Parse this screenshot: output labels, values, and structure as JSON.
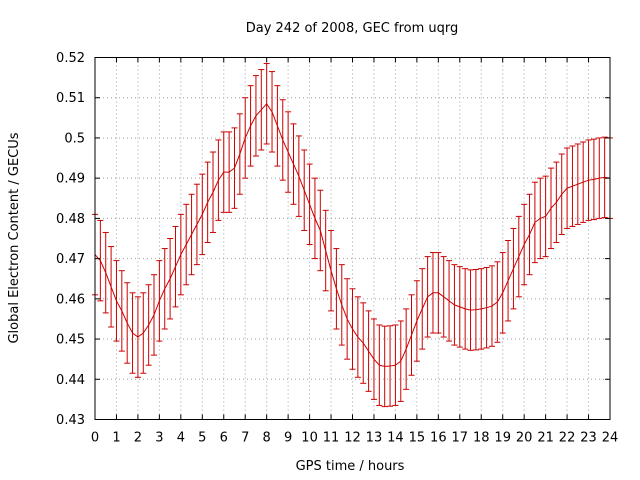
{
  "chart_data": {
    "type": "line",
    "title": "Day 242 of 2008, GEC from uqrg",
    "xlabel": "GPS time / hours",
    "ylabel": "Global Electron Content / GECUs",
    "xlim": [
      0,
      24
    ],
    "ylim": [
      0.43,
      0.52
    ],
    "xticks": [
      "0",
      "1",
      "2",
      "3",
      "4",
      "5",
      "6",
      "7",
      "8",
      "9",
      "10",
      "11",
      "12",
      "13",
      "14",
      "15",
      "16",
      "17",
      "18",
      "19",
      "20",
      "21",
      "22",
      "23",
      "24"
    ],
    "yticks": [
      "0.43",
      "0.44",
      "0.45",
      "0.46",
      "0.47",
      "0.48",
      "0.49",
      "0.5",
      "0.51",
      "0.52"
    ],
    "grid": true,
    "color": "#cc0000",
    "series": [
      {
        "name": "GEC",
        "x": [
          0,
          0.25,
          0.5,
          0.75,
          1,
          1.25,
          1.5,
          1.75,
          2,
          2.25,
          2.5,
          2.75,
          3,
          3.25,
          3.5,
          3.75,
          4,
          4.25,
          4.5,
          4.75,
          5,
          5.25,
          5.5,
          5.75,
          6,
          6.25,
          6.5,
          6.75,
          7,
          7.25,
          7.5,
          7.75,
          8,
          8.25,
          8.5,
          8.75,
          9,
          9.25,
          9.5,
          9.75,
          10,
          10.25,
          10.5,
          10.75,
          11,
          11.25,
          11.5,
          11.75,
          12,
          12.25,
          12.5,
          12.75,
          13,
          13.25,
          13.5,
          13.75,
          14,
          14.25,
          14.5,
          14.75,
          15,
          15.25,
          15.5,
          15.75,
          16,
          16.25,
          16.5,
          16.75,
          17,
          17.25,
          17.5,
          17.75,
          18,
          18.25,
          18.5,
          18.75,
          19,
          19.25,
          19.5,
          19.75,
          20,
          20.25,
          20.5,
          20.75,
          21,
          21.25,
          21.5,
          21.75,
          22,
          22.25,
          22.5,
          22.75,
          23,
          23.25,
          23.5,
          23.75,
          24
        ],
        "y": [
          0.471,
          0.4695,
          0.4665,
          0.463,
          0.4595,
          0.457,
          0.454,
          0.4515,
          0.4505,
          0.4515,
          0.4535,
          0.456,
          0.4595,
          0.4625,
          0.465,
          0.468,
          0.471,
          0.4735,
          0.476,
          0.4785,
          0.481,
          0.484,
          0.4865,
          0.4895,
          0.4915,
          0.4915,
          0.4925,
          0.496,
          0.5,
          0.503,
          0.5055,
          0.507,
          0.5085,
          0.5065,
          0.503,
          0.4995,
          0.4965,
          0.4935,
          0.4905,
          0.487,
          0.4835,
          0.48,
          0.477,
          0.472,
          0.467,
          0.4625,
          0.4585,
          0.455,
          0.4525,
          0.4505,
          0.449,
          0.447,
          0.445,
          0.4435,
          0.4432,
          0.4433,
          0.4435,
          0.4445,
          0.4475,
          0.451,
          0.4545,
          0.4575,
          0.4605,
          0.4615,
          0.4615,
          0.4605,
          0.4595,
          0.4585,
          0.458,
          0.4575,
          0.4572,
          0.4573,
          0.4575,
          0.4578,
          0.4582,
          0.4592,
          0.4615,
          0.4645,
          0.4675,
          0.4705,
          0.4735,
          0.476,
          0.479,
          0.48,
          0.4805,
          0.4825,
          0.484,
          0.486,
          0.4875,
          0.488,
          0.4885,
          0.489,
          0.4895,
          0.4897,
          0.49,
          0.4902,
          0.49
        ],
        "error": 0.01
      }
    ]
  }
}
